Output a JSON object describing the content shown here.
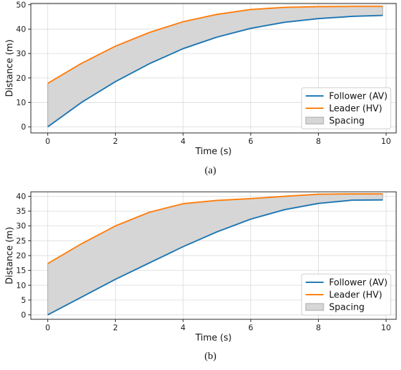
{
  "captions": [
    "(a)",
    "(b)"
  ],
  "colors": {
    "follower": "#1f77b4",
    "leader": "#ff7f0e",
    "spacing_fill": "#d6d6d6",
    "spacing_edge": "#9a9a9a"
  },
  "chart_data": [
    {
      "type": "line",
      "xlabel": "Time (s)",
      "ylabel": "Distance (m)",
      "xlim": [
        -0.5,
        10.3
      ],
      "ylim": [
        -2.5,
        50.5
      ],
      "xticks": [
        0,
        2,
        4,
        6,
        8,
        10
      ],
      "yticks": [
        0,
        10,
        20,
        30,
        40,
        50
      ],
      "grid": true,
      "legend_position": "lower-right",
      "x": [
        0,
        1,
        2,
        3,
        4,
        5,
        6,
        7,
        8,
        9,
        9.9
      ],
      "series": [
        {
          "name": "Follower (AV)",
          "values": [
            0,
            10,
            18.5,
            25.8,
            32,
            36.7,
            40.3,
            42.8,
            44.3,
            45.2,
            45.6
          ]
        },
        {
          "name": "Leader (HV)",
          "values": [
            17.8,
            26,
            33,
            38.6,
            43,
            46,
            48,
            48.9,
            49.2,
            49.3,
            49.3
          ]
        }
      ],
      "fill_label": "Spacing"
    },
    {
      "type": "line",
      "xlabel": "Time (s)",
      "ylabel": "Distance (m)",
      "xlim": [
        -0.5,
        10.3
      ],
      "ylim": [
        -1.5,
        41.5
      ],
      "xticks": [
        0,
        2,
        4,
        6,
        8,
        10
      ],
      "yticks": [
        0,
        5,
        10,
        15,
        20,
        25,
        30,
        35,
        40
      ],
      "grid": true,
      "legend_position": "lower-right",
      "x": [
        0,
        1,
        2,
        3,
        4,
        5,
        6,
        7,
        8,
        9,
        9.9
      ],
      "series": [
        {
          "name": "Follower (AV)",
          "values": [
            0,
            6,
            12,
            17.5,
            23,
            28,
            32.3,
            35.5,
            37.6,
            38.7,
            38.8
          ]
        },
        {
          "name": "Leader (HV)",
          "values": [
            17.3,
            24,
            30,
            34.6,
            37.5,
            38.6,
            39.2,
            40,
            40.7,
            40.8,
            40.8
          ]
        }
      ],
      "fill_label": "Spacing"
    }
  ]
}
